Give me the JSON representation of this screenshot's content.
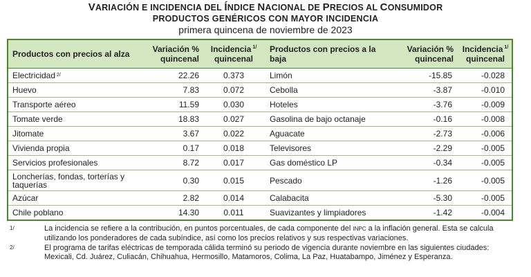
{
  "title": {
    "line1_parts": [
      "V",
      "ARIACIÓN E INCIDENCIA DEL ",
      "Í",
      "NDICE ",
      "N",
      "ACIONAL DE ",
      "P",
      "RECIOS AL ",
      "C",
      "ONSUMIDOR"
    ],
    "line2": "PRODUCTOS GENÉRICOS CON MAYOR INCIDENCIA",
    "line3": "primera quincena de noviembre de 2023"
  },
  "headers": {
    "up_product": "Productos con precios al alza",
    "up_variation": "Variación % quincenal",
    "up_incidence": "Incidencia",
    "up_incidence_sup": "1/",
    "up_incidence_2": "quincenal",
    "down_product": "Productos con precios a la baja",
    "down_variation": "Variación % quincenal",
    "down_incidence": "Incidencia",
    "down_incidence_sup": "1/",
    "down_incidence_2": "quincenal"
  },
  "rows": [
    {
      "up": "Electricidad",
      "up_sup": "2/",
      "uv": "22.26",
      "ui": "0.373",
      "down": "Limón",
      "dv": "-15.85",
      "di": "-0.028"
    },
    {
      "up": "Huevo",
      "up_sup": "",
      "uv": "7.83",
      "ui": "0.072",
      "down": "Cebolla",
      "dv": "-3.87",
      "di": "-0.010"
    },
    {
      "up": "Transporte aéreo",
      "up_sup": "",
      "uv": "11.59",
      "ui": "0.030",
      "down": "Hoteles",
      "dv": "-3.76",
      "di": "-0.009"
    },
    {
      "up": "Tomate verde",
      "up_sup": "",
      "uv": "18.83",
      "ui": "0.027",
      "down": "Gasolina de bajo octanaje",
      "dv": "-0.16",
      "di": "-0.008"
    },
    {
      "up": "Jitomate",
      "up_sup": "",
      "uv": "3.67",
      "ui": "0.022",
      "down": "Aguacate",
      "dv": "-2.73",
      "di": "-0.006"
    },
    {
      "up": "Vivienda propia",
      "up_sup": "",
      "uv": "0.17",
      "ui": "0.018",
      "down": "Televisores",
      "dv": "-2.29",
      "di": "-0.005"
    },
    {
      "up": "Servicios profesionales",
      "up_sup": "",
      "uv": "8.72",
      "ui": "0.017",
      "down": "Gas doméstico LP",
      "dv": "-0.34",
      "di": "-0.005"
    },
    {
      "up": "Loncherías, fondas, torterías y taquerías",
      "up_sup": "",
      "uv": "0.30",
      "ui": "0.015",
      "down": "Pescado",
      "dv": "-1.26",
      "di": "-0.005"
    },
    {
      "up": "Azúcar",
      "up_sup": "",
      "uv": "2.82",
      "ui": "0.014",
      "down": "Calabacita",
      "dv": "-5.30",
      "di": "-0.005"
    },
    {
      "up": "Chile poblano",
      "up_sup": "",
      "uv": "14.30",
      "ui": "0.011",
      "down": "Suavizantes y limpiadores",
      "dv": "-1.42",
      "di": "-0.004"
    }
  ],
  "notes": [
    {
      "mark": "1/",
      "text_a": "La incidencia se refiere a la contribución, en puntos porcentuales, de cada componente del ",
      "text_sm": "INPC",
      "text_b": " a la inflación general. Esta se calcula utilizando los ponderadores de cada subíndice, así como los precios relativos y sus respectivas variaciones."
    },
    {
      "mark": "2/",
      "text_a": "El programa de tarifas eléctricas de temporada cálida terminó su periodo de vigencia durante noviembre en las siguientes ciudades: Mexicali, Cd. Juárez, Culiacán, Chihuahua, Hermosillo, Matamoros, Colima, La Paz, Huatabampo, Jiménez y Esperanza.",
      "text_sm": "",
      "text_b": ""
    }
  ]
}
